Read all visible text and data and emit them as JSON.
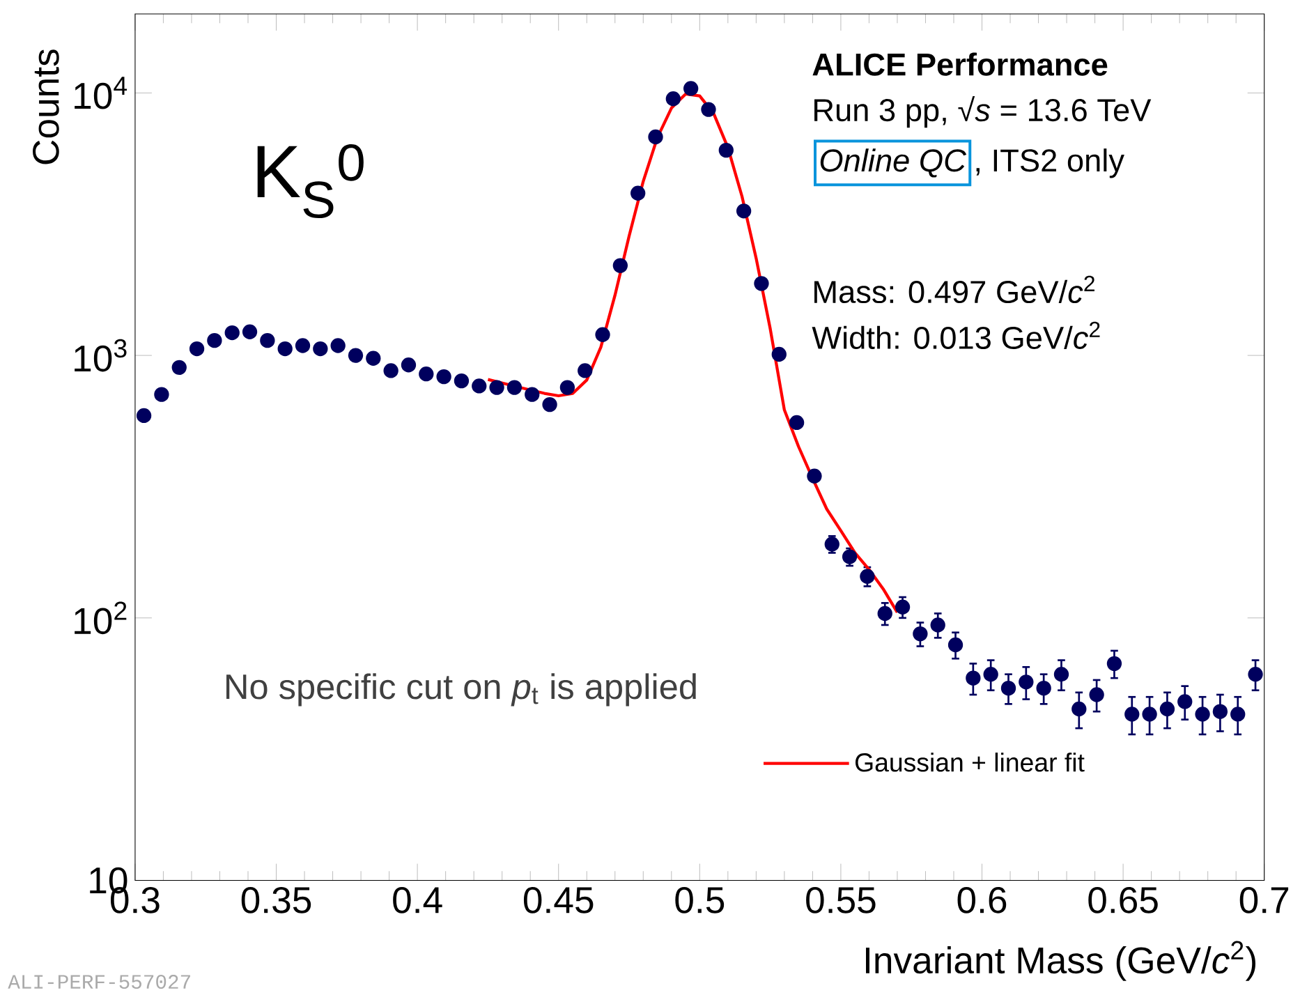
{
  "chart_data": {
    "type": "scatter",
    "xlabel": "Invariant Mass (GeV/*c*$^{2}$)",
    "ylabel": "Counts",
    "xlim": [
      0.3,
      0.7
    ],
    "xticks": [
      0.3,
      0.35,
      0.4,
      0.45,
      0.5,
      0.55,
      0.6,
      0.65,
      0.7
    ],
    "ylim": [
      10,
      20000
    ],
    "yticks": [
      10,
      {
        "value": 100,
        "label": "10$^{2}$"
      },
      {
        "value": 1000,
        "label": "10$^{3}$"
      },
      {
        "value": 10000,
        "label": "10$^{4}$"
      }
    ],
    "log": true,
    "grid": false,
    "legend": "bottom right",
    "marker": "circle",
    "annotations": [
      "K$_{S}$$^{0}$",
      "ALICE Performance",
      "Run 3 pp, √*s* = 13.6 TeV",
      "Online QC",
      ", ITS2 only",
      "Mass: 0.497 GeV/*c*$^{2}$",
      "Width: 0.013 GeV/*c*$^{2}$",
      "No specific cut on *p*$_{t}$ is applied",
      "ALI-PERF-557027"
    ],
    "series": [
      {
        "color": "#00005e",
        "x": [
          0.303125,
          0.309375,
          0.315625,
          0.321875,
          0.328125,
          0.334375,
          0.340625,
          0.346875,
          0.353125,
          0.359375,
          0.365625,
          0.371875,
          0.378125,
          0.384375,
          0.390625,
          0.396875,
          0.403125,
          0.409375,
          0.415625,
          0.421875,
          0.428125,
          0.434375,
          0.440625,
          0.446875,
          0.453125,
          0.459375,
          0.465625,
          0.471875,
          0.478125,
          0.484375,
          0.490625,
          0.496875,
          0.503125,
          0.509375,
          0.515625,
          0.521875,
          0.528125,
          0.534375,
          0.540625,
          0.546875,
          0.553125,
          0.559375,
          0.565625,
          0.571875,
          0.578125,
          0.584375,
          0.590625,
          0.596875,
          0.603125,
          0.609375,
          0.615625,
          0.621875,
          0.628125,
          0.634375,
          0.640625,
          0.646875,
          0.653125,
          0.659375,
          0.665625,
          0.671875,
          0.678125,
          0.684375,
          0.690625,
          0.696875
        ],
        "values": [
          590,
          710,
          900,
          1060,
          1140,
          1220,
          1230,
          1140,
          1060,
          1090,
          1060,
          1090,
          1000,
          975,
          875,
          920,
          850,
          830,
          800,
          765,
          755,
          755,
          710,
          650,
          755,
          875,
          1200,
          2200,
          4150,
          6800,
          9500,
          10400,
          8650,
          6050,
          3550,
          1880,
          1010,
          555,
          347,
          191,
          171,
          144,
          104,
          110,
          87,
          94,
          79,
          59,
          61,
          54,
          57,
          54,
          61,
          45,
          51,
          67,
          43,
          43,
          45,
          48,
          43,
          44,
          43,
          61
        ],
        "errors": [
          null,
          null,
          null,
          null,
          null,
          null,
          null,
          null,
          null,
          null,
          null,
          null,
          null,
          null,
          null,
          null,
          null,
          null,
          null,
          null,
          null,
          null,
          null,
          null,
          null,
          null,
          null,
          null,
          null,
          null,
          null,
          null,
          null,
          null,
          null,
          null,
          null,
          null,
          null,
          14,
          13,
          12,
          10,
          10,
          9,
          10,
          9,
          8,
          8,
          7,
          8,
          7,
          8,
          7,
          7,
          8,
          7,
          7,
          7,
          7,
          7,
          7,
          7,
          8
        ]
      },
      {
        "type": "line",
        "marker": "none",
        "name": "Gaussian + linear fit",
        "color": "#ff0000",
        "x": [
          0.425,
          0.435,
          0.445,
          0.45,
          0.455,
          0.46,
          0.465,
          0.47,
          0.475,
          0.48,
          0.485,
          0.49,
          0.495,
          0.5,
          0.505,
          0.51,
          0.515,
          0.52,
          0.525,
          0.53,
          0.535,
          0.54,
          0.545,
          0.55,
          0.555,
          0.56,
          0.565,
          0.57
        ],
        "values": [
          810,
          761,
          717,
          702,
          716,
          806,
          1076,
          1696,
          2849,
          4603,
          6755,
          8757,
          9906,
          9744,
          8326,
          6188,
          4032,
          2345,
          1262,
          620,
          450,
          340,
          260,
          215,
          177,
          153,
          129,
          105
        ]
      }
    ]
  }
}
